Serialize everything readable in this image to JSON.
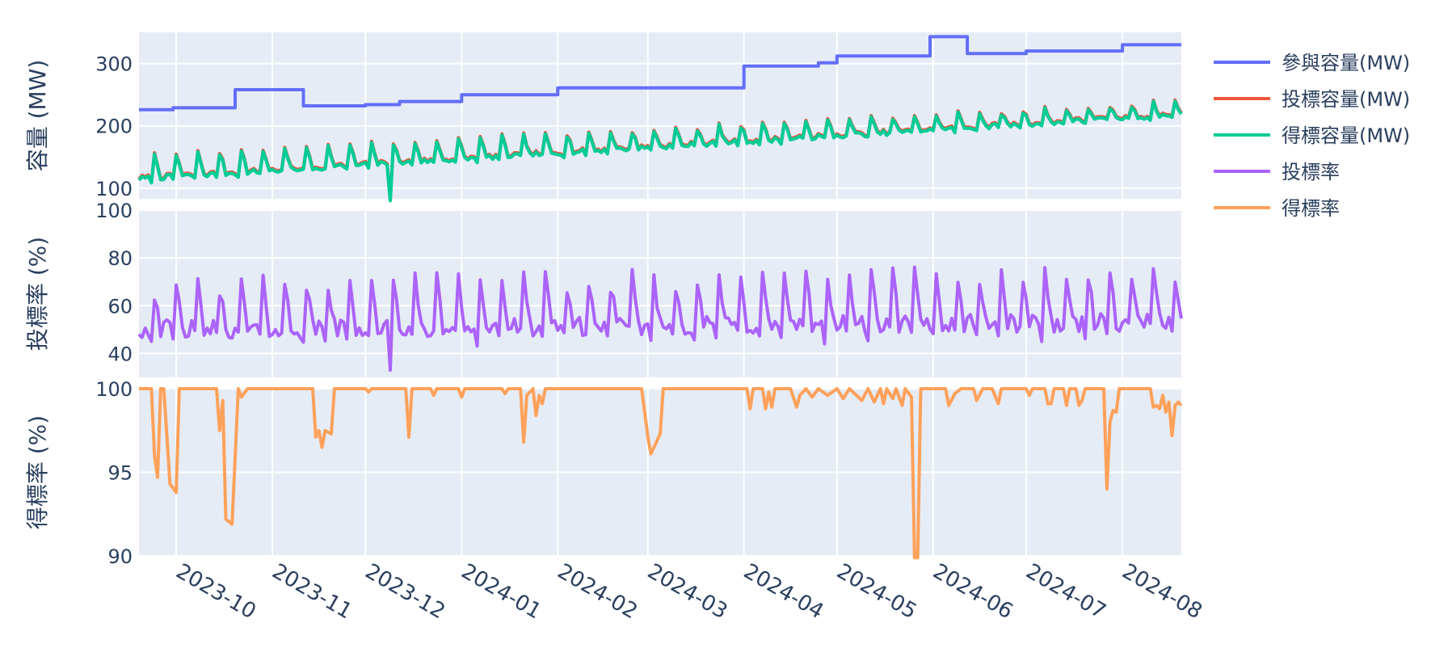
{
  "chart_data": {
    "type": "line",
    "subplots": [
      {
        "ylabel": "容量 (MW)",
        "ylim": [
          83,
          350
        ],
        "yticks": [
          100,
          200,
          300
        ],
        "series": [
          "參與容量(MW)",
          "投標容量(MW)",
          "得標容量(MW)"
        ]
      },
      {
        "ylabel": "投標率 (%)",
        "ylim": [
          30,
          100
        ],
        "yticks": [
          40,
          60,
          80,
          100
        ],
        "series": [
          "投標率"
        ]
      },
      {
        "ylabel": "得標率 (%)",
        "ylim": [
          90,
          100
        ],
        "yticks": [
          90,
          95,
          100
        ],
        "series": [
          "得標率"
        ]
      }
    ],
    "x_range": [
      "2023-09-19",
      "2024-08-20"
    ],
    "x_ticks": [
      "2023-10",
      "2023-11",
      "2023-12",
      "2024-01",
      "2024-02",
      "2024-03",
      "2024-04",
      "2024-05",
      "2024-06",
      "2024-07",
      "2024-08"
    ],
    "legend": [
      "參與容量(MW)",
      "投標容量(MW)",
      "得標容量(MW)",
      "投標率",
      "得標率"
    ],
    "legend_position": "top-right",
    "colors": {
      "參與容量(MW)": "#636efa",
      "投標容量(MW)": "#ef553b",
      "得標容量(MW)": "#00cc96",
      "投標率": "#ab63fa",
      "得標率": "#ffa15a"
    },
    "series": [
      {
        "name": "參與容量(MW)",
        "subplot": 0,
        "step": true,
        "points": [
          [
            "2023-09-19",
            226
          ],
          [
            "2023-09-30",
            229
          ],
          [
            "2023-10-20",
            258
          ],
          [
            "2023-11-11",
            232
          ],
          [
            "2023-12-01",
            234
          ],
          [
            "2023-12-12",
            239
          ],
          [
            "2024-01-01",
            250
          ],
          [
            "2024-02-01",
            261
          ],
          [
            "2024-04-01",
            296
          ],
          [
            "2024-04-25",
            301
          ],
          [
            "2024-05-01",
            312
          ],
          [
            "2024-05-31",
            343
          ],
          [
            "2024-06-12",
            316
          ],
          [
            "2024-07-01",
            320
          ],
          [
            "2024-08-01",
            330
          ],
          [
            "2024-08-20",
            330
          ]
        ]
      },
      {
        "name": "投標容量(MW)",
        "subplot": 0,
        "base": [
          118,
          220
        ],
        "weekly_peak": [
          158,
          240
        ],
        "offset_from_awarded": 2
      },
      {
        "name": "得標容量(MW)",
        "subplot": 0,
        "base": [
          115,
          218
        ],
        "weekly_peak": [
          150,
          237
        ],
        "min_value": 80
      },
      {
        "name": "投標率",
        "subplot": 1,
        "base": [
          50,
          53
        ],
        "weekly_peak": [
          67,
          74
        ],
        "min_value": 33
      },
      {
        "name": "得標率",
        "subplot": 2,
        "points": [
          [
            "2023-09-19",
            100
          ],
          [
            "2023-09-23",
            100
          ],
          [
            "2023-09-24",
            96
          ],
          [
            "2023-09-25",
            94.7
          ],
          [
            "2023-09-26",
            100
          ],
          [
            "2023-09-27",
            100
          ],
          [
            "2023-09-29",
            94.3
          ],
          [
            "2023-10-01",
            93.8
          ],
          [
            "2023-10-02",
            100
          ],
          [
            "2023-10-14",
            100
          ],
          [
            "2023-10-15",
            97.5
          ],
          [
            "2023-10-16",
            99.3
          ],
          [
            "2023-10-17",
            92.2
          ],
          [
            "2023-10-19",
            91.9
          ],
          [
            "2023-10-21",
            100
          ],
          [
            "2023-10-22",
            99.5
          ],
          [
            "2023-10-24",
            100
          ],
          [
            "2023-11-14",
            100
          ],
          [
            "2023-11-15",
            97.1
          ],
          [
            "2023-11-16",
            97.5
          ],
          [
            "2023-11-17",
            96.5
          ],
          [
            "2023-11-18",
            97.5
          ],
          [
            "2023-11-20",
            97.3
          ],
          [
            "2023-11-21",
            100
          ],
          [
            "2023-12-01",
            100
          ],
          [
            "2023-12-02",
            99.8
          ],
          [
            "2023-12-03",
            100
          ],
          [
            "2023-12-14",
            100
          ],
          [
            "2023-12-15",
            97.1
          ],
          [
            "2023-12-16",
            100
          ],
          [
            "2023-12-22",
            100
          ],
          [
            "2023-12-23",
            99.6
          ],
          [
            "2023-12-24",
            100
          ],
          [
            "2023-12-31",
            100
          ],
          [
            "2024-01-01",
            99.5
          ],
          [
            "2024-01-02",
            100
          ],
          [
            "2024-01-14",
            100
          ],
          [
            "2024-01-15",
            99.7
          ],
          [
            "2024-01-16",
            100
          ],
          [
            "2024-01-20",
            100
          ],
          [
            "2024-01-21",
            96.8
          ],
          [
            "2024-01-22",
            99.6
          ],
          [
            "2024-01-24",
            100
          ],
          [
            "2024-01-25",
            98.4
          ],
          [
            "2024-01-26",
            99.6
          ],
          [
            "2024-01-27",
            99.1
          ],
          [
            "2024-01-28",
            100
          ],
          [
            "2024-02-28",
            100
          ],
          [
            "2024-03-01",
            97.2
          ],
          [
            "2024-03-02",
            96.1
          ],
          [
            "2024-03-04",
            96.9
          ],
          [
            "2024-03-05",
            97.3
          ],
          [
            "2024-03-06",
            100
          ],
          [
            "2024-04-02",
            100
          ],
          [
            "2024-04-03",
            98.8
          ],
          [
            "2024-04-04",
            100
          ],
          [
            "2024-04-07",
            100
          ],
          [
            "2024-04-08",
            98.8
          ],
          [
            "2024-04-09",
            99.8
          ],
          [
            "2024-04-10",
            98.9
          ],
          [
            "2024-04-11",
            100
          ],
          [
            "2024-04-16",
            100
          ],
          [
            "2024-04-18",
            98.9
          ],
          [
            "2024-04-19",
            99.6
          ],
          [
            "2024-04-21",
            100
          ],
          [
            "2024-04-23",
            99.5
          ],
          [
            "2024-04-25",
            100
          ],
          [
            "2024-04-28",
            99.6
          ],
          [
            "2024-05-01",
            100
          ],
          [
            "2024-05-03",
            99.4
          ],
          [
            "2024-05-05",
            100
          ],
          [
            "2024-05-09",
            99.3
          ],
          [
            "2024-05-11",
            100
          ],
          [
            "2024-05-13",
            99.2
          ],
          [
            "2024-05-15",
            100
          ],
          [
            "2024-05-16",
            99.1
          ],
          [
            "2024-05-17",
            100
          ],
          [
            "2024-05-19",
            99.4
          ],
          [
            "2024-05-20",
            100
          ],
          [
            "2024-05-22",
            99.0
          ],
          [
            "2024-05-23",
            100
          ],
          [
            "2024-05-25",
            99.5
          ],
          [
            "2024-05-26",
            89.9
          ],
          [
            "2024-05-27",
            89.9
          ],
          [
            "2024-05-28",
            100
          ],
          [
            "2024-06-05",
            100
          ],
          [
            "2024-06-06",
            99.0
          ],
          [
            "2024-06-08",
            99.7
          ],
          [
            "2024-06-10",
            100
          ],
          [
            "2024-06-14",
            100
          ],
          [
            "2024-06-15",
            99.3
          ],
          [
            "2024-06-17",
            100
          ],
          [
            "2024-06-20",
            100
          ],
          [
            "2024-06-22",
            99.1
          ],
          [
            "2024-06-23",
            100
          ],
          [
            "2024-07-01",
            100
          ],
          [
            "2024-07-02",
            99.6
          ],
          [
            "2024-07-03",
            100
          ],
          [
            "2024-07-07",
            100
          ],
          [
            "2024-07-08",
            99.1
          ],
          [
            "2024-07-09",
            99.1
          ],
          [
            "2024-07-10",
            100
          ],
          [
            "2024-07-13",
            100
          ],
          [
            "2024-07-14",
            99.0
          ],
          [
            "2024-07-15",
            100
          ],
          [
            "2024-07-17",
            100
          ],
          [
            "2024-07-18",
            99.0
          ],
          [
            "2024-07-19",
            99.3
          ],
          [
            "2024-07-20",
            100
          ],
          [
            "2024-07-26",
            100
          ],
          [
            "2024-07-27",
            94.0
          ],
          [
            "2024-07-28",
            98.0
          ],
          [
            "2024-07-29",
            98.7
          ],
          [
            "2024-07-30",
            98.6
          ],
          [
            "2024-07-31",
            100
          ],
          [
            "2024-08-10",
            100
          ],
          [
            "2024-08-11",
            98.9
          ],
          [
            "2024-08-12",
            99.0
          ],
          [
            "2024-08-13",
            98.8
          ],
          [
            "2024-08-14",
            99.6
          ],
          [
            "2024-08-15",
            98.6
          ],
          [
            "2024-08-16",
            99.2
          ],
          [
            "2024-08-17",
            97.2
          ],
          [
            "2024-08-18",
            99.0
          ],
          [
            "2024-08-19",
            99.2
          ],
          [
            "2024-08-20",
            99.0
          ]
        ]
      }
    ]
  }
}
